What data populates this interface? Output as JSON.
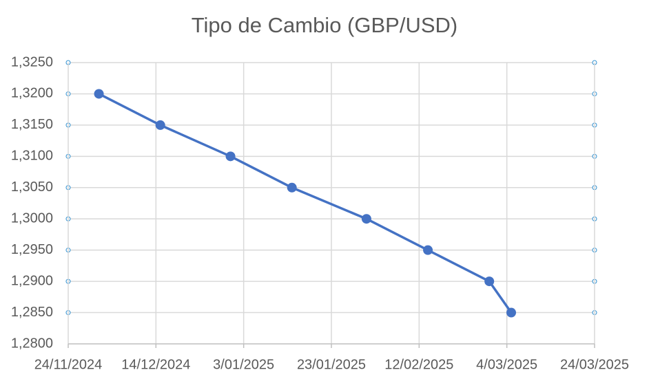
{
  "chart_data": {
    "type": "line",
    "title": "Tipo de Cambio (GBP/USD)",
    "x": [
      "1/12/2024",
      "15/12/2024",
      "31/12/2024",
      "14/01/2025",
      "31/01/2025",
      "14/02/2025",
      "28/02/2025",
      "5/03/2025"
    ],
    "values": [
      1.32,
      1.315,
      1.31,
      1.305,
      1.3,
      1.295,
      1.29,
      1.285
    ],
    "color": "#4472c4",
    "xlim": [
      "24/11/2024",
      "24/03/2025"
    ],
    "xticks": [
      "24/11/2024",
      "14/12/2024",
      "3/01/2025",
      "23/01/2025",
      "12/02/2025",
      "4/03/2025",
      "24/03/2025"
    ],
    "ylim": [
      1.28,
      1.325
    ],
    "yticks": [
      {
        "value": 1.28,
        "label": "1,2800"
      },
      {
        "value": 1.285,
        "label": "1,2850"
      },
      {
        "value": 1.29,
        "label": "1,2900"
      },
      {
        "value": 1.295,
        "label": "1,2950"
      },
      {
        "value": 1.3,
        "label": "1,3000"
      },
      {
        "value": 1.305,
        "label": "1,3050"
      },
      {
        "value": 1.31,
        "label": "1,3100"
      },
      {
        "value": 1.315,
        "label": "1,3150"
      },
      {
        "value": 1.32,
        "label": "1,3200"
      },
      {
        "value": 1.325,
        "label": "1,3250"
      }
    ],
    "grid": true
  }
}
